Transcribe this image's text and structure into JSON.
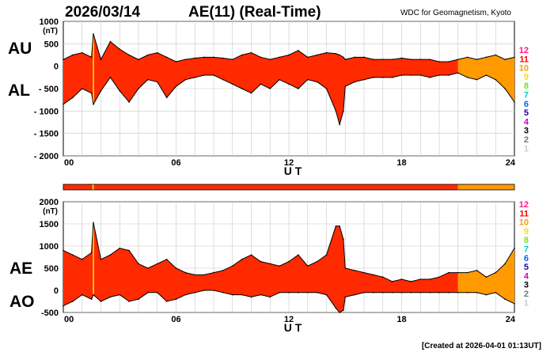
{
  "header": {
    "date": "2026/03/14",
    "title": "AE(11) (Real-Time)",
    "source": "WDC for Geomagnetism, Kyoto",
    "created": "[Created at 2026-04-01 01:13UT]"
  },
  "labels": {
    "au": "AU",
    "al": "AL",
    "ae": "AE",
    "ao": "AO"
  },
  "colors": {
    "red": "#ff2a00",
    "orange": "#ff9a00",
    "yellow": "#ffe400",
    "outline": "#000000"
  },
  "legend_stations": [
    {
      "num": "12",
      "color": "#ff1a8c"
    },
    {
      "num": "11",
      "color": "#ff0000"
    },
    {
      "num": "10",
      "color": "#ff9900"
    },
    {
      "num": "9",
      "color": "#ffdd00"
    },
    {
      "num": "8",
      "color": "#66ee00"
    },
    {
      "num": "7",
      "color": "#00cccc"
    },
    {
      "num": "6",
      "color": "#0066ff"
    },
    {
      "num": "5",
      "color": "#2200aa"
    },
    {
      "num": "4",
      "color": "#cc00cc"
    },
    {
      "num": "3",
      "color": "#000000"
    },
    {
      "num": "2",
      "color": "#777777"
    },
    {
      "num": "1",
      "color": "#cccccc"
    }
  ],
  "station_count_bar": [
    {
      "from": 0.0,
      "to": 1.55,
      "stations": 11
    },
    {
      "from": 1.55,
      "to": 1.62,
      "stations": 9
    },
    {
      "from": 1.62,
      "to": 21.0,
      "stations": 11
    },
    {
      "from": 21.0,
      "to": 24.0,
      "stations": 10
    }
  ],
  "chart_data": [
    {
      "type": "area",
      "title": "",
      "xlabel": "U T",
      "ylabel": "(nT)",
      "xlim": [
        0,
        24
      ],
      "ylim": [
        -2000,
        1000
      ],
      "x_ticks": [
        "00",
        "06",
        "12",
        "18",
        "24"
      ],
      "y_ticks": [
        "1000",
        "500",
        "0",
        "- 500",
        "- 1000",
        "- 1500",
        "- 2000"
      ],
      "x": [
        0,
        0.5,
        1,
        1.5,
        1.6,
        2,
        2.5,
        3,
        3.5,
        4,
        4.5,
        5,
        5.5,
        6,
        6.5,
        7,
        7.5,
        8,
        8.5,
        9,
        9.5,
        10,
        10.5,
        11,
        11.5,
        12,
        12.5,
        13,
        13.5,
        14,
        14.5,
        14.7,
        14.9,
        15,
        15.5,
        16,
        16.5,
        17,
        17.5,
        18,
        18.5,
        19,
        19.5,
        20,
        20.5,
        21,
        21.5,
        22,
        22.5,
        23,
        23.5,
        24
      ],
      "series": [
        {
          "name": "AU",
          "values": [
            150,
            250,
            300,
            200,
            720,
            150,
            550,
            380,
            250,
            150,
            250,
            300,
            200,
            100,
            150,
            180,
            200,
            200,
            180,
            150,
            250,
            300,
            200,
            150,
            200,
            250,
            350,
            200,
            250,
            300,
            280,
            250,
            200,
            150,
            200,
            200,
            150,
            150,
            150,
            180,
            150,
            150,
            150,
            100,
            100,
            150,
            200,
            150,
            200,
            250,
            150,
            200
          ]
        },
        {
          "name": "AL",
          "values": [
            -850,
            -700,
            -500,
            -600,
            -850,
            -550,
            -250,
            -550,
            -800,
            -500,
            -300,
            -350,
            -700,
            -450,
            -300,
            -250,
            -200,
            -200,
            -300,
            -400,
            -500,
            -600,
            -400,
            -500,
            -300,
            -400,
            -500,
            -300,
            -350,
            -500,
            -1000,
            -1300,
            -1000,
            -450,
            -350,
            -300,
            -250,
            -250,
            -250,
            -200,
            -200,
            -200,
            -250,
            -200,
            -200,
            -150,
            -250,
            -300,
            -200,
            -300,
            -500,
            -800
          ]
        }
      ]
    },
    {
      "type": "area",
      "title": "",
      "xlabel": "U T",
      "ylabel": "(nT)",
      "xlim": [
        0,
        24
      ],
      "ylim": [
        -500,
        2000
      ],
      "x_ticks": [
        "00",
        "06",
        "12",
        "18",
        "24"
      ],
      "y_ticks": [
        "2000",
        "1500",
        "1000",
        "500",
        "0",
        "-500"
      ],
      "x": [
        0,
        0.5,
        1,
        1.5,
        1.6,
        2,
        2.5,
        3,
        3.5,
        4,
        4.5,
        5,
        5.5,
        6,
        6.5,
        7,
        7.5,
        8,
        8.5,
        9,
        9.5,
        10,
        10.5,
        11,
        11.5,
        12,
        12.5,
        13,
        13.5,
        14,
        14.5,
        14.7,
        14.9,
        15,
        15.5,
        16,
        16.5,
        17,
        17.5,
        18,
        18.5,
        19,
        19.5,
        20,
        20.5,
        21,
        21.5,
        22,
        22.5,
        23,
        23.5,
        24
      ],
      "series": [
        {
          "name": "AE",
          "values": [
            900,
            800,
            700,
            850,
            1530,
            700,
            800,
            950,
            900,
            600,
            500,
            600,
            700,
            500,
            400,
            350,
            350,
            400,
            450,
            550,
            700,
            800,
            650,
            600,
            550,
            650,
            800,
            550,
            650,
            800,
            1450,
            1450,
            1150,
            500,
            450,
            400,
            350,
            300,
            200,
            250,
            200,
            250,
            250,
            300,
            400,
            400,
            400,
            450,
            300,
            400,
            600,
            950
          ]
        },
        {
          "name": "AO",
          "values": [
            -350,
            -250,
            -100,
            -200,
            -100,
            -250,
            -150,
            -100,
            -250,
            -200,
            -50,
            -50,
            -250,
            -200,
            -100,
            -50,
            0,
            0,
            -50,
            -100,
            -100,
            -150,
            -100,
            -150,
            -50,
            -50,
            -50,
            -50,
            -50,
            -100,
            -400,
            -500,
            -450,
            -150,
            -100,
            -50,
            -50,
            -50,
            -50,
            -50,
            -50,
            -50,
            -50,
            -50,
            -50,
            -50,
            -50,
            -50,
            -100,
            -50,
            -200,
            -300
          ]
        }
      ]
    }
  ]
}
